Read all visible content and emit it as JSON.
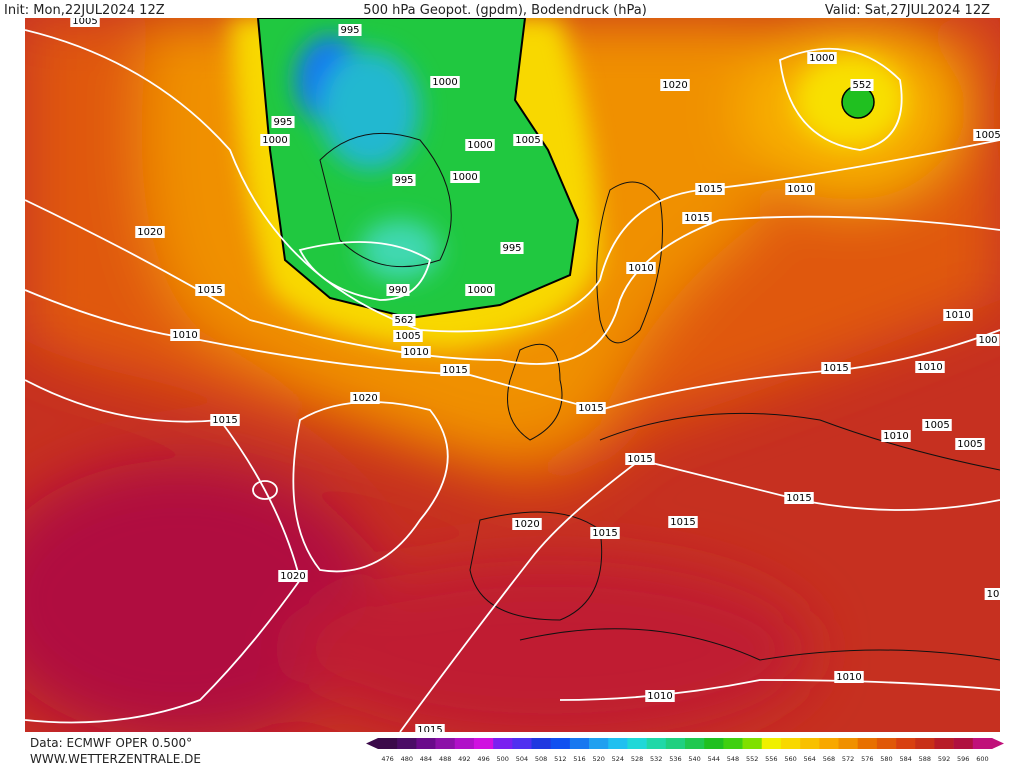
{
  "header": {
    "init": "Init: Mon,22JUL2024 12Z",
    "title": "500 hPa Geopot. (gpdm), Bodendruck (hPa)",
    "valid": "Valid: Sat,27JUL2024 12Z"
  },
  "contour_labels": [
    "1005",
    "995",
    "1000",
    "1020",
    "1000",
    "552",
    "1005",
    "995",
    "1000",
    "1005",
    "1000",
    "1000",
    "995",
    "1015",
    "1010",
    "1015",
    "995",
    "1020",
    "1010",
    "990",
    "1000",
    "1015",
    "562",
    "1005",
    "1010",
    "1010",
    "1010",
    "100",
    "1015",
    "1015",
    "1010",
    "1020",
    "1015",
    "1015",
    "1005",
    "1010",
    "1005",
    "1015",
    "1015",
    "1020",
    "1015",
    "1015",
    "1020",
    "10",
    "1010",
    "1010",
    "1015"
  ],
  "footer": {
    "data": "Data: ECMWF OPER 0.500°",
    "site": "WWW.WETTERZENTRALE.DE"
  },
  "scale": {
    "values": [
      476,
      480,
      484,
      488,
      492,
      496,
      500,
      504,
      508,
      512,
      516,
      520,
      524,
      528,
      532,
      536,
      540,
      544,
      548,
      552,
      556,
      560,
      564,
      568,
      572,
      576,
      580,
      584,
      588,
      592,
      596,
      600
    ],
    "colors": [
      "#3b0a4a",
      "#4b0c66",
      "#6a0a8a",
      "#8c10a8",
      "#b010c8",
      "#d010e0",
      "#7a20f0",
      "#5030f0",
      "#2038e0",
      "#1050f0",
      "#1878f0",
      "#20a0f0",
      "#20c0f0",
      "#20d8d8",
      "#20d8a8",
      "#20d080",
      "#20c850",
      "#20c020",
      "#40d010",
      "#80e000",
      "#f0f000",
      "#f8d800",
      "#f8c000",
      "#f8a800",
      "#f09000",
      "#e87000",
      "#e05808",
      "#d84010",
      "#c83018",
      "#b81c28",
      "#b01040",
      "#c0107a"
    ]
  }
}
